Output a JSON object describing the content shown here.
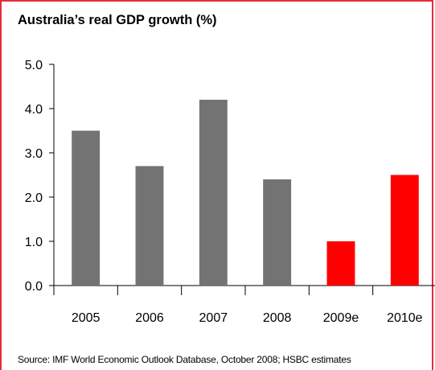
{
  "title": "Australia’s real GDP growth (%)",
  "source": "Source: IMF World Economic Outlook Database, October 2008; HSBC estimates",
  "colors": {
    "frame": "#e0303a",
    "actual": "#737373",
    "estimate": "#ff0000"
  },
  "chart_data": {
    "type": "bar",
    "title": "Australia’s real GDP growth (%)",
    "categories": [
      "2005",
      "2006",
      "2007",
      "2008",
      "2009e",
      "2010e"
    ],
    "values": [
      3.5,
      2.7,
      4.2,
      2.4,
      1.0,
      2.5
    ],
    "estimate": [
      false,
      false,
      false,
      false,
      true,
      true
    ],
    "xlabel": "",
    "ylabel": "",
    "ylim": [
      0,
      5
    ],
    "yticks": [
      "0.0",
      "1.0",
      "2.0",
      "3.0",
      "4.0",
      "5.0"
    ],
    "grid": false,
    "legend": "none"
  }
}
